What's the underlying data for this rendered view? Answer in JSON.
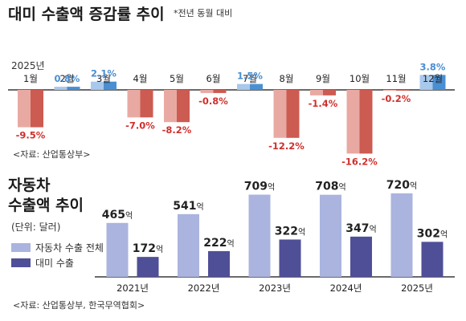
{
  "header": {
    "title": "대미 수출액 증감률 추이",
    "note": "*전년 동월 대비"
  },
  "source1": "<자료: 산업통상부>",
  "source2": "<자료: 산업통상부, 한국무역협회>",
  "colors": {
    "positive": "#4a8fd2",
    "positive_light": "#a8c8ec",
    "negative": "#cc5b52",
    "negative_light": "#e9a9a3",
    "negative_text": "#d0302c",
    "total": "#aab4de",
    "us": "#4f4f98",
    "baseline": "#111111"
  },
  "chart_data": [
    {
      "type": "bar",
      "title": "대미 수출액 증감률 추이",
      "year_label": "2025년",
      "categories": [
        "1월",
        "2월",
        "3월",
        "4월",
        "5월",
        "6월",
        "7월",
        "8월",
        "9월",
        "10월",
        "11월",
        "12월"
      ],
      "values": [
        -9.5,
        0.8,
        2.1,
        -7.0,
        -8.2,
        -0.8,
        1.5,
        -12.2,
        -1.4,
        -16.2,
        -0.2,
        3.8
      ],
      "value_labels": [
        "-9.5%",
        "0.8%",
        "2.1%",
        "-7.0%",
        "-8.2%",
        "-0.8%",
        "1.5%",
        "-12.2%",
        "-1.4%",
        "-16.2%",
        "-0.2%",
        "3.8%"
      ],
      "ylim": [
        -18,
        4
      ]
    },
    {
      "type": "bar",
      "title": "자동차 수출액 추이",
      "title_lines": [
        "자동차",
        "수출액 추이"
      ],
      "unit": "(단위: 달러)",
      "categories": [
        "2021년",
        "2022년",
        "2023년",
        "2024년",
        "2025년"
      ],
      "series": [
        {
          "name": "자동차 수출 전체",
          "values": [
            465,
            541,
            709,
            708,
            720
          ],
          "labels": [
            "465억",
            "541억",
            "709억",
            "708억",
            "720억"
          ]
        },
        {
          "name": "대미 수출",
          "values": [
            172,
            222,
            322,
            347,
            302
          ],
          "labels": [
            "172억",
            "222억",
            "322억",
            "347억",
            "302억"
          ]
        }
      ],
      "ylim": [
        0,
        720
      ]
    }
  ]
}
